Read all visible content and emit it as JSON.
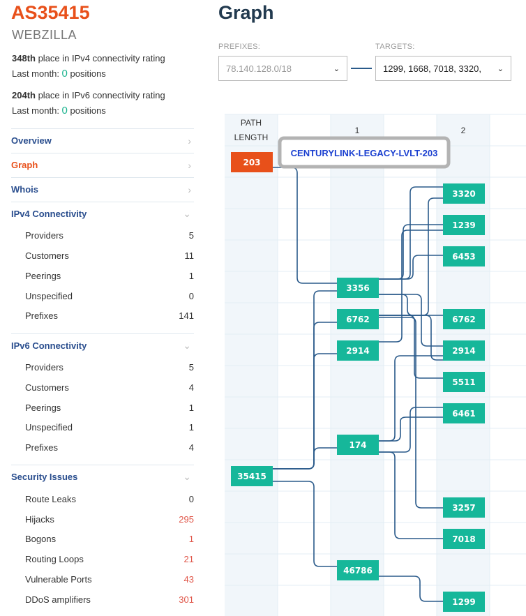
{
  "as": {
    "title": "AS35415",
    "name": "WEBZILLA"
  },
  "rating": [
    {
      "place": "348th",
      "text": " place in IPv4 connectivity rating",
      "last_label": "Last month: ",
      "last_value": "0",
      "last_unit": " positions"
    },
    {
      "place": "204th",
      "text": " place in IPv6 connectivity rating",
      "last_label": "Last month: ",
      "last_value": "0",
      "last_unit": " positions"
    }
  ],
  "nav": {
    "overview": "Overview",
    "graph": "Graph",
    "whois": "Whois",
    "ipv4": "IPv4 Connectivity",
    "ipv6": "IPv6 Connectivity",
    "security": "Security Issues"
  },
  "ipv4": [
    {
      "label": "Providers",
      "value": "5"
    },
    {
      "label": "Customers",
      "value": "11"
    },
    {
      "label": "Peerings",
      "value": "1"
    },
    {
      "label": "Unspecified",
      "value": "0"
    },
    {
      "label": "Prefixes",
      "value": "141"
    }
  ],
  "ipv6": [
    {
      "label": "Providers",
      "value": "5"
    },
    {
      "label": "Customers",
      "value": "4"
    },
    {
      "label": "Peerings",
      "value": "1"
    },
    {
      "label": "Unspecified",
      "value": "1"
    },
    {
      "label": "Prefixes",
      "value": "4"
    }
  ],
  "security": [
    {
      "label": "Route Leaks",
      "value": "0"
    },
    {
      "label": "Hijacks",
      "value": "295"
    },
    {
      "label": "Bogons",
      "value": "1"
    },
    {
      "label": "Routing Loops",
      "value": "21"
    },
    {
      "label": "Vulnerable Ports",
      "value": "43"
    },
    {
      "label": "DDoS amplifiers",
      "value": "301"
    }
  ],
  "graph": {
    "title": "Graph",
    "prefixes_label": "PREFIXES:",
    "prefixes_value": "78.140.128.0/18",
    "targets_label": "TARGETS:",
    "targets_value": "1299, 1668, 7018, 3320,",
    "path_length_label": [
      "PATH",
      "LENGTH"
    ],
    "columns": [
      "1",
      "2"
    ],
    "tooltip": "CENTURYLINK-LEGACY-LVLT-203",
    "nodes": {
      "n203": "203",
      "n35415": "35415",
      "n3356": "3356",
      "n6762a": "6762",
      "n2914a": "2914",
      "n174": "174",
      "n46786": "46786",
      "n3320": "3320",
      "n1239": "1239",
      "n6453": "6453",
      "n6762b": "6762",
      "n2914b": "2914",
      "n5511": "5511",
      "n6461": "6461",
      "n3257": "3257",
      "n7018": "7018",
      "n1299": "1299"
    },
    "colors": {
      "origin": "#e8501a",
      "node": "#16b79a",
      "edge": "#2a5a8a",
      "tooltip_text": "#1a3fd0",
      "stripe": "#f1f6fa",
      "grid": "#e3edf4"
    }
  }
}
